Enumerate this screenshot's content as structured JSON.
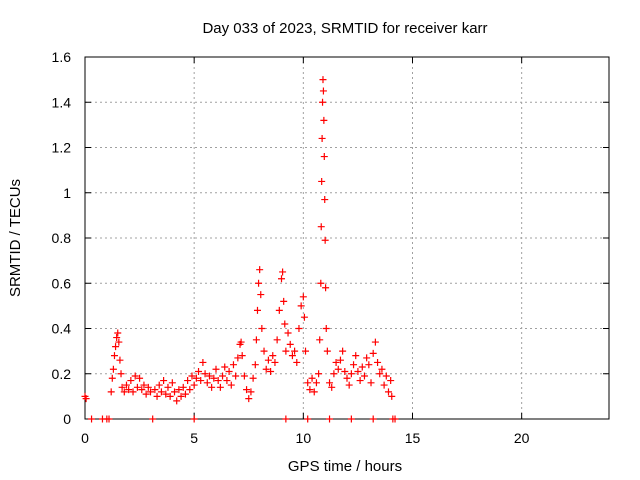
{
  "chart_data": {
    "type": "scatter",
    "title": "Day 033 of 2023, SRMTID for receiver karr",
    "xlabel": "GPS time / hours",
    "ylabel": "SRMTID / TECUs",
    "xlim": [
      0,
      24
    ],
    "ylim": [
      0,
      1.6
    ],
    "x_ticks": [
      0,
      5,
      10,
      15,
      20
    ],
    "x_tick_labels": [
      "0",
      "5",
      "10",
      "15",
      "20"
    ],
    "y_ticks": [
      0,
      0.2,
      0.4,
      0.6,
      0.8,
      1,
      1.2,
      1.4,
      1.6
    ],
    "y_tick_labels": [
      "0",
      "0.2",
      "0.4",
      "0.6",
      "0.8",
      "1",
      "1.2",
      "1.4",
      "1.6"
    ],
    "grid": true,
    "marker": "+",
    "color": "#ff0000",
    "series": [
      {
        "name": "SRMTID",
        "points": [
          [
            0.0,
            0.1
          ],
          [
            0.05,
            0.09
          ],
          [
            0.3,
            0.0
          ],
          [
            0.8,
            0.0
          ],
          [
            1.0,
            0.0
          ],
          [
            1.1,
            0.0
          ],
          [
            1.2,
            0.12
          ],
          [
            1.25,
            0.18
          ],
          [
            1.3,
            0.22
          ],
          [
            1.35,
            0.28
          ],
          [
            1.4,
            0.32
          ],
          [
            1.45,
            0.36
          ],
          [
            1.5,
            0.38
          ],
          [
            1.55,
            0.34
          ],
          [
            1.6,
            0.26
          ],
          [
            1.65,
            0.2
          ],
          [
            1.7,
            0.14
          ],
          [
            1.8,
            0.12
          ],
          [
            1.9,
            0.15
          ],
          [
            2.0,
            0.13
          ],
          [
            2.1,
            0.17
          ],
          [
            2.2,
            0.12
          ],
          [
            2.3,
            0.19
          ],
          [
            2.4,
            0.14
          ],
          [
            2.5,
            0.18
          ],
          [
            2.6,
            0.13
          ],
          [
            2.7,
            0.15
          ],
          [
            2.8,
            0.11
          ],
          [
            2.9,
            0.14
          ],
          [
            3.0,
            0.12
          ],
          [
            3.1,
            0.0
          ],
          [
            3.2,
            0.13
          ],
          [
            3.3,
            0.1
          ],
          [
            3.4,
            0.15
          ],
          [
            3.5,
            0.12
          ],
          [
            3.6,
            0.17
          ],
          [
            3.7,
            0.11
          ],
          [
            3.8,
            0.14
          ],
          [
            3.9,
            0.1
          ],
          [
            4.0,
            0.16
          ],
          [
            4.1,
            0.12
          ],
          [
            4.2,
            0.08
          ],
          [
            4.3,
            0.13
          ],
          [
            4.4,
            0.1
          ],
          [
            4.5,
            0.14
          ],
          [
            4.6,
            0.11
          ],
          [
            4.7,
            0.17
          ],
          [
            4.8,
            0.13
          ],
          [
            4.9,
            0.19
          ],
          [
            5.0,
            0.15
          ],
          [
            5.1,
            0.18
          ],
          [
            5.2,
            0.21
          ],
          [
            5.3,
            0.17
          ],
          [
            5.4,
            0.25
          ],
          [
            5.5,
            0.2
          ],
          [
            5.6,
            0.16
          ],
          [
            5.7,
            0.19
          ],
          [
            5.8,
            0.14
          ],
          [
            5.9,
            0.18
          ],
          [
            6.0,
            0.22
          ],
          [
            6.1,
            0.17
          ],
          [
            6.2,
            0.14
          ],
          [
            6.3,
            0.19
          ],
          [
            6.4,
            0.23
          ],
          [
            6.5,
            0.17
          ],
          [
            6.6,
            0.21
          ],
          [
            6.7,
            0.15
          ],
          [
            6.8,
            0.24
          ],
          [
            6.9,
            0.19
          ],
          [
            7.0,
            0.27
          ],
          [
            7.1,
            0.33
          ],
          [
            7.15,
            0.34
          ],
          [
            7.2,
            0.28
          ],
          [
            7.3,
            0.19
          ],
          [
            7.4,
            0.13
          ],
          [
            7.5,
            0.09
          ],
          [
            7.6,
            0.12
          ],
          [
            7.7,
            0.18
          ],
          [
            7.8,
            0.24
          ],
          [
            7.85,
            0.35
          ],
          [
            7.9,
            0.48
          ],
          [
            7.95,
            0.6
          ],
          [
            8.0,
            0.66
          ],
          [
            8.05,
            0.55
          ],
          [
            8.1,
            0.4
          ],
          [
            8.2,
            0.3
          ],
          [
            8.3,
            0.22
          ],
          [
            8.4,
            0.26
          ],
          [
            8.5,
            0.21
          ],
          [
            8.6,
            0.28
          ],
          [
            8.7,
            0.25
          ],
          [
            8.8,
            0.35
          ],
          [
            8.9,
            0.48
          ],
          [
            9.0,
            0.62
          ],
          [
            9.05,
            0.65
          ],
          [
            9.1,
            0.52
          ],
          [
            9.15,
            0.42
          ],
          [
            9.2,
            0.3
          ],
          [
            9.3,
            0.38
          ],
          [
            9.4,
            0.33
          ],
          [
            9.5,
            0.28
          ],
          [
            9.6,
            0.3
          ],
          [
            9.7,
            0.25
          ],
          [
            9.8,
            0.4
          ],
          [
            9.9,
            0.5
          ],
          [
            10.0,
            0.54
          ],
          [
            10.05,
            0.45
          ],
          [
            10.1,
            0.3
          ],
          [
            10.2,
            0.16
          ],
          [
            10.3,
            0.13
          ],
          [
            10.4,
            0.18
          ],
          [
            10.5,
            0.12
          ],
          [
            10.6,
            0.16
          ],
          [
            10.7,
            0.2
          ],
          [
            10.75,
            0.35
          ],
          [
            10.8,
            0.6
          ],
          [
            10.82,
            0.85
          ],
          [
            10.84,
            1.05
          ],
          [
            10.86,
            1.24
          ],
          [
            10.88,
            1.4
          ],
          [
            10.9,
            1.5
          ],
          [
            10.92,
            1.45
          ],
          [
            10.94,
            1.32
          ],
          [
            10.96,
            1.16
          ],
          [
            10.98,
            0.97
          ],
          [
            11.0,
            0.79
          ],
          [
            11.02,
            0.58
          ],
          [
            11.05,
            0.4
          ],
          [
            11.1,
            0.3
          ],
          [
            11.2,
            0.16
          ],
          [
            11.3,
            0.14
          ],
          [
            11.4,
            0.2
          ],
          [
            11.5,
            0.25
          ],
          [
            11.6,
            0.22
          ],
          [
            11.7,
            0.26
          ],
          [
            11.8,
            0.3
          ],
          [
            11.9,
            0.21
          ],
          [
            12.0,
            0.18
          ],
          [
            12.1,
            0.15
          ],
          [
            12.2,
            0.2
          ],
          [
            12.3,
            0.24
          ],
          [
            12.4,
            0.28
          ],
          [
            12.5,
            0.21
          ],
          [
            12.6,
            0.17
          ],
          [
            12.7,
            0.23
          ],
          [
            12.8,
            0.19
          ],
          [
            12.9,
            0.27
          ],
          [
            13.0,
            0.24
          ],
          [
            13.1,
            0.16
          ],
          [
            13.2,
            0.29
          ],
          [
            13.3,
            0.34
          ],
          [
            13.4,
            0.25
          ],
          [
            13.5,
            0.2
          ],
          [
            13.6,
            0.22
          ],
          [
            13.7,
            0.15
          ],
          [
            13.8,
            0.19
          ],
          [
            13.9,
            0.12
          ],
          [
            14.0,
            0.17
          ],
          [
            14.05,
            0.1
          ],
          [
            14.1,
            0.0
          ],
          [
            14.2,
            0.0
          ],
          [
            5.0,
            0.0
          ],
          [
            9.2,
            0.0
          ],
          [
            10.2,
            0.0
          ],
          [
            11.2,
            0.0
          ],
          [
            12.2,
            0.0
          ],
          [
            13.2,
            0.0
          ]
        ]
      }
    ]
  }
}
